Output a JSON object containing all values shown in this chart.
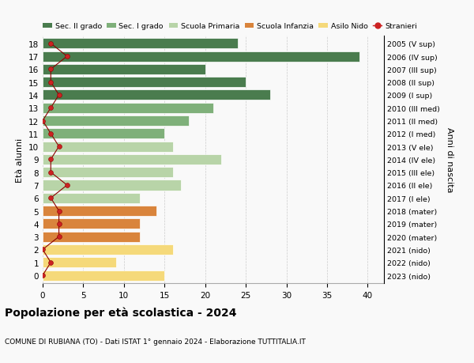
{
  "ages": [
    18,
    17,
    16,
    15,
    14,
    13,
    12,
    11,
    10,
    9,
    8,
    7,
    6,
    5,
    4,
    3,
    2,
    1,
    0
  ],
  "years": [
    "2005 (V sup)",
    "2006 (IV sup)",
    "2007 (III sup)",
    "2008 (II sup)",
    "2009 (I sup)",
    "2010 (III med)",
    "2011 (II med)",
    "2012 (I med)",
    "2013 (V ele)",
    "2014 (IV ele)",
    "2015 (III ele)",
    "2016 (II ele)",
    "2017 (I ele)",
    "2018 (mater)",
    "2019 (mater)",
    "2020 (mater)",
    "2021 (nido)",
    "2022 (nido)",
    "2023 (nido)"
  ],
  "bar_values": [
    24,
    39,
    20,
    25,
    28,
    21,
    18,
    15,
    16,
    22,
    16,
    17,
    12,
    14,
    12,
    12,
    16,
    9,
    15
  ],
  "bar_colors": [
    "#4a7c4e",
    "#4a7c4e",
    "#4a7c4e",
    "#4a7c4e",
    "#4a7c4e",
    "#7fb07a",
    "#7fb07a",
    "#7fb07a",
    "#b8d4a8",
    "#b8d4a8",
    "#b8d4a8",
    "#b8d4a8",
    "#b8d4a8",
    "#d9843c",
    "#d9843c",
    "#d9843c",
    "#f5d97a",
    "#f5d97a",
    "#f5d97a"
  ],
  "stranieri_values": [
    1,
    3,
    1,
    1,
    2,
    1,
    0,
    1,
    2,
    1,
    1,
    3,
    1,
    2,
    2,
    2,
    0,
    1,
    0
  ],
  "legend_labels": [
    "Sec. II grado",
    "Sec. I grado",
    "Scuola Primaria",
    "Scuola Infanzia",
    "Asilo Nido",
    "Stranieri"
  ],
  "legend_colors": [
    "#4a7c4e",
    "#7fb07a",
    "#b8d4a8",
    "#d9843c",
    "#f5d97a",
    "#cc2222"
  ],
  "title": "Popolazione per età scolastica - 2024",
  "subtitle": "COMUNE DI RUBIANA (TO) - Dati ISTAT 1° gennaio 2024 - Elaborazione TUTTITALIA.IT",
  "ylabel_left": "Età alunni",
  "ylabel_right": "Anni di nascita",
  "xlim": [
    0,
    42
  ],
  "xticks": [
    0,
    5,
    10,
    15,
    20,
    25,
    30,
    35,
    40
  ],
  "background_color": "#f9f9f9",
  "grid_color": "#cccccc"
}
